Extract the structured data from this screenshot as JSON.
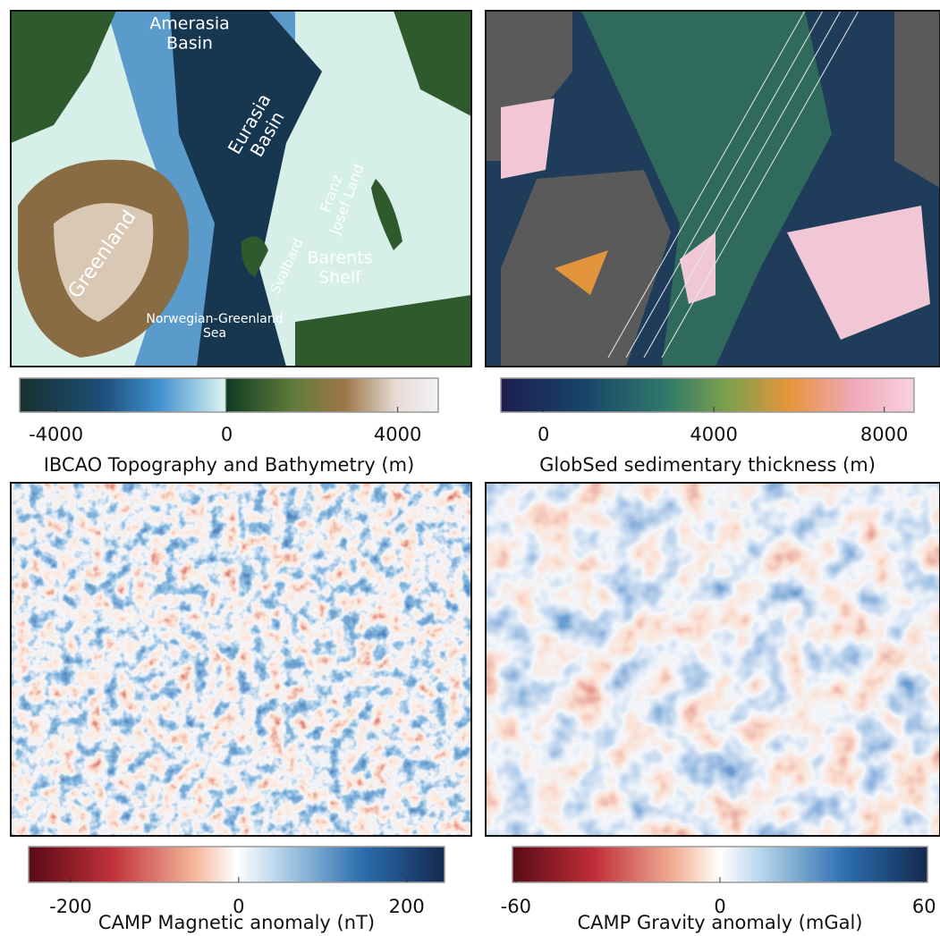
{
  "panels": [
    {
      "labels": [
        {
          "lines": [
            "Amerasia",
            "Basin"
          ]
        },
        {
          "lines": [
            "Eurasia",
            "Basin"
          ]
        },
        {
          "lines": [
            "Franz",
            "Josef Land"
          ]
        },
        {
          "lines": [
            "Greenland"
          ]
        },
        {
          "lines": [
            ".Svalbard"
          ]
        },
        {
          "lines": [
            "Barents",
            "Shelf"
          ]
        },
        {
          "lines": [
            "Norwegian-Greenland",
            "Sea"
          ]
        }
      ],
      "colorbar": {
        "title": "IBCAO Topography and Bathymetry (m)",
        "range": [
          -4850,
          4950
        ],
        "ticks": [
          -4000,
          0,
          4000
        ]
      }
    },
    {
      "colorbar": {
        "title": "GlobSed sedimentary thickness (m)",
        "range": [
          -1000,
          8700
        ],
        "ticks": [
          0,
          4000,
          8000
        ]
      }
    },
    {
      "colorbar": {
        "title": "CAMP Magnetic anomaly (nT)",
        "range": [
          -250,
          245
        ],
        "ticks": [
          -200,
          0,
          200
        ]
      }
    },
    {
      "colorbar": {
        "title": "CAMP Gravity anomaly (mGal)",
        "range": [
          -61,
          61
        ],
        "ticks": [
          -60,
          0,
          60
        ]
      }
    }
  ]
}
